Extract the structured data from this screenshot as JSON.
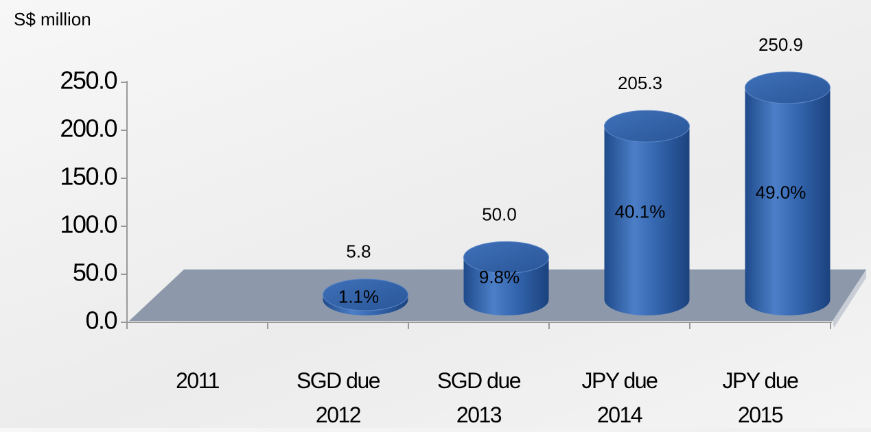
{
  "chart_data": {
    "type": "cylinder-bar",
    "axis_label": "S$ million",
    "categories": [
      "2011",
      "SGD due 2012",
      "SGD due 2013",
      "JPY due 2014",
      "JPY due 2015"
    ],
    "values": [
      null,
      5.8,
      50.0,
      205.3,
      250.9
    ],
    "value_labels": [
      null,
      "5.8",
      "50.0",
      "205.3",
      "250.9"
    ],
    "percent_labels": [
      null,
      "1.1%",
      "9.8%",
      "40.1%",
      "49.0%"
    ],
    "color": "#2f62ad",
    "ylim": [
      0,
      250
    ],
    "yticks": [
      {
        "value": 0,
        "label": "0.0"
      },
      {
        "value": 50,
        "label": "50.0"
      },
      {
        "value": 100,
        "label": "100.0"
      },
      {
        "value": 150,
        "label": "150.0"
      },
      {
        "value": 200,
        "label": "200.0"
      },
      {
        "value": 250,
        "label": "250.0"
      }
    ]
  }
}
